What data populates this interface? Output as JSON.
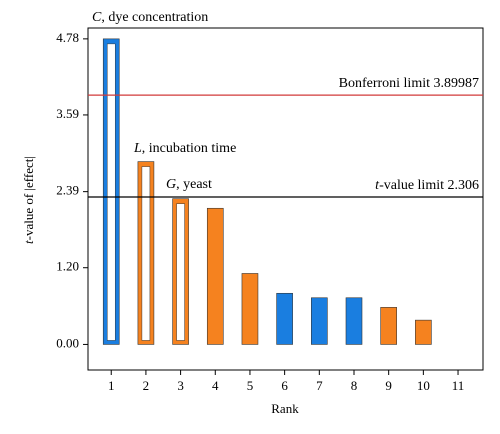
{
  "chart_data": {
    "type": "bar",
    "x_label": "Rank",
    "y_label": {
      "symbol": "t",
      "text": "-value of |effect|"
    },
    "x": [
      1,
      2,
      3,
      4,
      5,
      6,
      7,
      8,
      9,
      10
    ],
    "series": [
      {
        "values": [
          4.78,
          2.86,
          2.28,
          2.13,
          1.11,
          0.8,
          0.73,
          0.73,
          0.58,
          0.38
        ],
        "colors": [
          "#1a7ee0",
          "#f5821f",
          "#f5821f",
          "#f5821f",
          "#f5821f",
          "#1a7ee0",
          "#1a7ee0",
          "#1a7ee0",
          "#f5821f",
          "#f5821f"
        ],
        "hollow": [
          true,
          true,
          true,
          false,
          false,
          false,
          false,
          false,
          false,
          false
        ]
      }
    ],
    "annotations": [
      {
        "symbol": "C",
        "text": ", dye concentration"
      },
      {
        "symbol": "L",
        "text": ", incubation time"
      },
      {
        "symbol": "G",
        "text": ", yeast"
      }
    ],
    "reference_lines": [
      {
        "label": "Bonferroni limit 3.89987",
        "value": 3.89987,
        "color": "#d23a3a"
      },
      {
        "symbol": "t",
        "label": "-value limit 2.306",
        "value": 2.306,
        "color": "#000000"
      }
    ],
    "xlim": [
      0.33,
      11.72
    ],
    "xticks": [
      1,
      2,
      3,
      4,
      5,
      6,
      7,
      8,
      9,
      10,
      11
    ],
    "ylim": [
      -0.4,
      4.95
    ],
    "yticks": [
      {
        "value": 0,
        "label": "0.00"
      },
      {
        "value": 1.2,
        "label": "1.20"
      },
      {
        "value": 2.39,
        "label": "2.39"
      },
      {
        "value": 3.59,
        "label": "3.59"
      },
      {
        "value": 4.78,
        "label": "4.78"
      }
    ]
  }
}
